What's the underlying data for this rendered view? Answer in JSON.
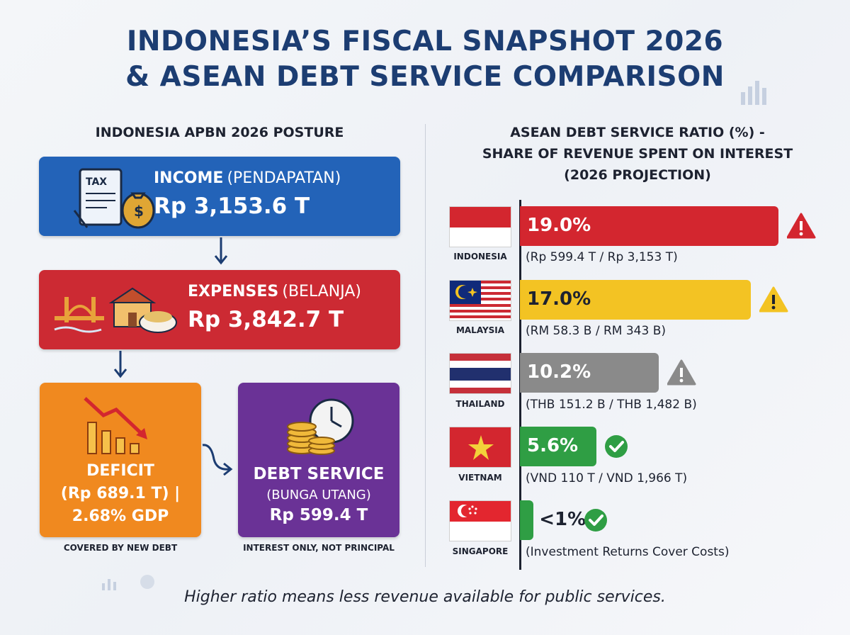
{
  "title_line1": "INDONESIA’S FISCAL SNAPSHOT 2026",
  "title_line2": "& ASEAN DEBT SERVICE COMPARISON",
  "left": {
    "heading": "INDONESIA APBN 2026 POSTURE",
    "income": {
      "label": "INCOME",
      "sub": "(PENDAPATAN)",
      "amount": "Rp 3,153.6 T",
      "icon_text": "TAX",
      "color": "#2363b8"
    },
    "expenses": {
      "label": "EXPENSES",
      "sub": "(BELANJA)",
      "amount": "Rp 3,842.7 T",
      "color": "#cc2a33"
    },
    "deficit": {
      "line1": "DEFICIT",
      "line2": "(Rp 689.1 T) |",
      "line3": "2.68% GDP",
      "caption": "COVERED BY NEW DEBT",
      "color": "#f0891f"
    },
    "debt_service": {
      "line1": "DEBT SERVICE",
      "line2": "(BUNGA UTANG)",
      "line3": "Rp 599.4 T",
      "caption": "INTEREST ONLY, NOT PRINCIPAL",
      "color": "#6a3296"
    }
  },
  "right": {
    "heading_line1": "ASEAN DEBT SERVICE RATIO (%) -",
    "heading_line2": "SHARE OF REVENUE SPENT ON INTEREST",
    "heading_line3": "(2026 PROJECTION)"
  },
  "chart_data": {
    "type": "bar",
    "orientation": "horizontal",
    "title": "ASEAN DEBT SERVICE RATIO (%) - SHARE OF REVENUE SPENT ON INTEREST (2026 PROJECTION)",
    "categories": [
      "INDONESIA",
      "MALAYSIA",
      "THAILAND",
      "VIETNAM",
      "SINGAPORE"
    ],
    "values": [
      19.0,
      17.0,
      10.2,
      5.6,
      1
    ],
    "value_labels": [
      "19.0%",
      "17.0%",
      "10.2%",
      "5.6%",
      "<1%"
    ],
    "details": [
      "(Rp 599.4 T / Rp 3,153 T)",
      "(RM 58.3 B / RM 343 B)",
      "(THB 151.2 B / THB 1,482 B)",
      "(VND 110 T / VND 1,966 T)",
      "(Investment Returns Cover Costs)"
    ],
    "bar_colors": [
      "#d3262f",
      "#f3c323",
      "#8a8a8a",
      "#2f9e44",
      "#2f9e44"
    ],
    "status_icons": [
      "warning-red",
      "warning-yellow",
      "warning-gray",
      "check-green",
      "check-green"
    ],
    "xlim": [
      0,
      20
    ]
  },
  "footer": "Higher ratio means less revenue available for public services."
}
